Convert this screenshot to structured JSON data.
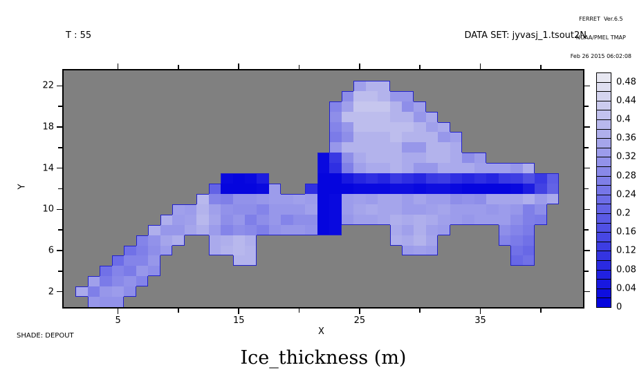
{
  "header": {
    "credit_line1": "FERRET  Ver.6.5",
    "credit_line2": "NOAA/PMEL TMAP",
    "credit_line3": "Feb 26 2015 06:02:08",
    "time_label": "T : 55",
    "dataset_label": "DATA SET: jyvasj_1.tsout2N"
  },
  "footer": {
    "shade_label": "SHADE: DEPOUT"
  },
  "chart_data": {
    "type": "heatmap",
    "title": "Ice_thickness (m)",
    "xlabel": "X",
    "ylabel": "Y",
    "x_range": [
      0.5,
      43.5
    ],
    "y_range": [
      0.5,
      23.5
    ],
    "grid_lines": "off",
    "legend_position": "right-colorbar",
    "x_ticks_major": [
      {
        "label": "5",
        "value": 5
      },
      {
        "label": "15",
        "value": 15
      },
      {
        "label": "25",
        "value": 25
      },
      {
        "label": "35",
        "value": 35
      }
    ],
    "x_ticks_minor": [
      10,
      20,
      30,
      40
    ],
    "y_ticks_major": [
      {
        "label": "2",
        "value": 2
      },
      {
        "label": "6",
        "value": 6
      },
      {
        "label": "10",
        "value": 10
      },
      {
        "label": "14",
        "value": 14
      },
      {
        "label": "18",
        "value": 18
      },
      {
        "label": "22",
        "value": 22
      }
    ],
    "y_ticks_minor": [
      4,
      8,
      12,
      16,
      20
    ],
    "colorbar": {
      "min": 0,
      "max": 0.5,
      "box_step": 0.02,
      "labels": [
        {
          "text": "0.48",
          "value": 0.48
        },
        {
          "text": "0.44",
          "value": 0.44
        },
        {
          "text": "0.4",
          "value": 0.4
        },
        {
          "text": "0.36",
          "value": 0.36
        },
        {
          "text": "0.32",
          "value": 0.32
        },
        {
          "text": "0.28",
          "value": 0.28
        },
        {
          "text": "0.24",
          "value": 0.24
        },
        {
          "text": "0.2",
          "value": 0.2
        },
        {
          "text": "0.16",
          "value": 0.16
        },
        {
          "text": "0.12",
          "value": 0.12
        },
        {
          "text": "0.08",
          "value": 0.08
        },
        {
          "text": "0.04",
          "value": 0.04
        },
        {
          "text": "0",
          "value": 0
        }
      ],
      "color_low": "#0000de",
      "color_high": "#ececf1"
    },
    "colors": {
      "no_data_gray": "#808080",
      "outline_blue": "#2020cc",
      "frame_black": "#000000"
    },
    "grid": {
      "ncols": 43,
      "nrows": 23,
      "x_start": 1,
      "y_start": 1,
      "units": "m",
      "rows": [
        {
          "y": 22,
          "runs": [
            [
              25,
              [
                0.34,
                0.38,
                0.38
              ]
            ]
          ]
        },
        {
          "y": 21,
          "runs": [
            [
              24,
              [
                0.3,
                0.4,
                0.4,
                0.38,
                0.32,
                0.32
              ]
            ]
          ]
        },
        {
          "y": 20,
          "runs": [
            [
              23,
              [
                0.28,
                0.34,
                0.42,
                0.42,
                0.42,
                0.38,
                0.3,
                0.34
              ]
            ]
          ]
        },
        {
          "y": 19,
          "runs": [
            [
              23,
              [
                0.3,
                0.4,
                0.4,
                0.4,
                0.4,
                0.38,
                0.38,
                0.32,
                0.36
              ]
            ]
          ]
        },
        {
          "y": 18,
          "runs": [
            [
              23,
              [
                0.28,
                0.32,
                0.4,
                0.4,
                0.4,
                0.4,
                0.4,
                0.38,
                0.34,
                0.36
              ]
            ]
          ]
        },
        {
          "y": 17,
          "runs": [
            [
              23,
              [
                0.26,
                0.3,
                0.38,
                0.38,
                0.38,
                0.4,
                0.38,
                0.38,
                0.38,
                0.32,
                0.34
              ]
            ]
          ]
        },
        {
          "y": 16,
          "runs": [
            [
              23,
              [
                0.32,
                0.38,
                0.38,
                0.38,
                0.38,
                0.38,
                0.32,
                0.32,
                0.38,
                0.38,
                0.36
              ]
            ]
          ]
        },
        {
          "y": 15,
          "runs": [
            [
              22,
              [
                0.02,
                0.12,
                0.3,
                0.36,
                0.38,
                0.38,
                0.38,
                0.36,
                0.36,
                0.38,
                0.38,
                0.36,
                0.3,
                0.33
              ]
            ]
          ]
        },
        {
          "y": 14,
          "runs": [
            [
              22,
              [
                0.02,
                0.1,
                0.27,
                0.34,
                0.36,
                0.36,
                0.38,
                0.36,
                0.32,
                0.32,
                0.36,
                0.36,
                0.36,
                0.34,
                0.34,
                0.34,
                0.32,
                0.37
              ]
            ]
          ]
        },
        {
          "y": 13,
          "runs": [
            [
              14,
              [
                0.02,
                0.01,
                0.02,
                0.06
              ]
            ],
            [
              22,
              [
                0.01,
                0.01,
                0.05,
                0.08,
                0.1,
                0.08,
                0.12,
                0.1,
                0.08,
                0.12,
                0.13,
                0.1,
                0.08,
                0.1,
                0.08,
                0.12,
                0.13,
                0.17,
                0.12,
                0.2
              ]
            ]
          ]
        },
        {
          "y": 12,
          "runs": [
            [
              13,
              [
                0.21,
                0.01,
                0.01,
                0.01,
                0.02,
                0.33
              ]
            ],
            [
              21,
              [
                0.1,
                0.01,
                0.01,
                0.01,
                0.02,
                0.02,
                0.02,
                0.03,
                0.03,
                0.02,
                0.03,
                0.03,
                0.02,
                0.01,
                0.01,
                0.01,
                0.01,
                0.02,
                0.06,
                0.14,
                0.21
              ]
            ]
          ]
        },
        {
          "y": 11,
          "runs": [
            [
              12,
              [
                0.39,
                0.28,
                0.27,
                0.31,
                0.31,
                0.32,
                0.33,
                0.33,
                0.34,
                0.33,
                0.01,
                0.02,
                0.33,
                0.34,
                0.33,
                0.35,
                0.35,
                0.33,
                0.35,
                0.33,
                0.33,
                0.3,
                0.31,
                0.3,
                0.35,
                0.35,
                0.35,
                0.37,
                0.33,
                0.36
              ]
            ]
          ]
        },
        {
          "y": 10,
          "runs": [
            [
              10,
              [
                0.34,
                0.33,
                0.38,
                0.34,
                0.31,
                0.3,
                0.3,
                0.28,
                0.32,
                0.32,
                0.32,
                0.34,
                0.01,
                0.02,
                0.33,
                0.35,
                0.36,
                0.35,
                0.35,
                0.33,
                0.33,
                0.34,
                0.35,
                0.33,
                0.33,
                0.33,
                0.32,
                0.33,
                0.32,
                0.27,
                0.3
              ]
            ]
          ]
        },
        {
          "y": 9,
          "runs": [
            [
              9,
              [
                0.37,
                0.33,
                0.34,
                0.39,
                0.35,
                0.3,
                0.32,
                0.27,
                0.3,
                0.32,
                0.28,
                0.3,
                0.3,
                0.01,
                0.02,
                0.32,
                0.34,
                0.34,
                0.35,
                0.37,
                0.36,
                0.37,
                0.36,
                0.34,
                0.33,
                0.32,
                0.33,
                0.33,
                0.33,
                0.3,
                0.27,
                0.26
              ]
            ]
          ]
        },
        {
          "y": 8,
          "runs": [
            [
              8,
              [
                0.37,
                0.32,
                0.32,
                0.35,
                0.37,
                0.33,
                0.28,
                0.3,
                0.29,
                0.27,
                0.31,
                0.32,
                0.32,
                0.31,
                0.01,
                0.02
              ]
            ],
            [
              28,
              [
                0.36,
                0.34,
                0.37,
                0.34,
                0.33
              ]
            ],
            [
              37,
              [
                0.3,
                0.28,
                0.26
              ]
            ]
          ]
        },
        {
          "y": 7,
          "runs": [
            [
              7,
              [
                0.28,
                0.31,
                0.35,
                0.37
              ]
            ],
            [
              13,
              [
                0.36,
                0.37,
                0.39,
                0.37
              ]
            ],
            [
              28,
              [
                0.37,
                0.36,
                0.38,
                0.35
              ]
            ],
            [
              37,
              [
                0.28,
                0.26,
                0.24
              ]
            ]
          ]
        },
        {
          "y": 6,
          "runs": [
            [
              6,
              [
                0.24,
                0.27,
                0.3,
                0.33
              ]
            ],
            [
              13,
              [
                0.36,
                0.38,
                0.39,
                0.38
              ]
            ],
            [
              29,
              [
                0.33,
                0.34,
                0.33
              ]
            ],
            [
              38,
              [
                0.24,
                0.22
              ]
            ]
          ]
        },
        {
          "y": 5,
          "runs": [
            [
              5,
              [
                0.23,
                0.28,
                0.28,
                0.32
              ]
            ],
            [
              15,
              [
                0.38,
                0.38
              ]
            ],
            [
              38,
              [
                0.22,
                0.24
              ]
            ]
          ]
        },
        {
          "y": 4,
          "runs": [
            [
              4,
              [
                0.24,
                0.28,
                0.26,
                0.32,
                0.3
              ]
            ]
          ]
        },
        {
          "y": 3,
          "runs": [
            [
              3,
              [
                0.34,
                0.26,
                0.29,
                0.31,
                0.28
              ]
            ]
          ]
        },
        {
          "y": 2,
          "runs": [
            [
              2,
              [
                0.36,
                0.27,
                0.32,
                0.33,
                0.3
              ]
            ]
          ]
        },
        {
          "y": 1,
          "runs": [
            [
              3,
              [
                0.32,
                0.31,
                0.31
              ]
            ]
          ]
        }
      ]
    }
  }
}
